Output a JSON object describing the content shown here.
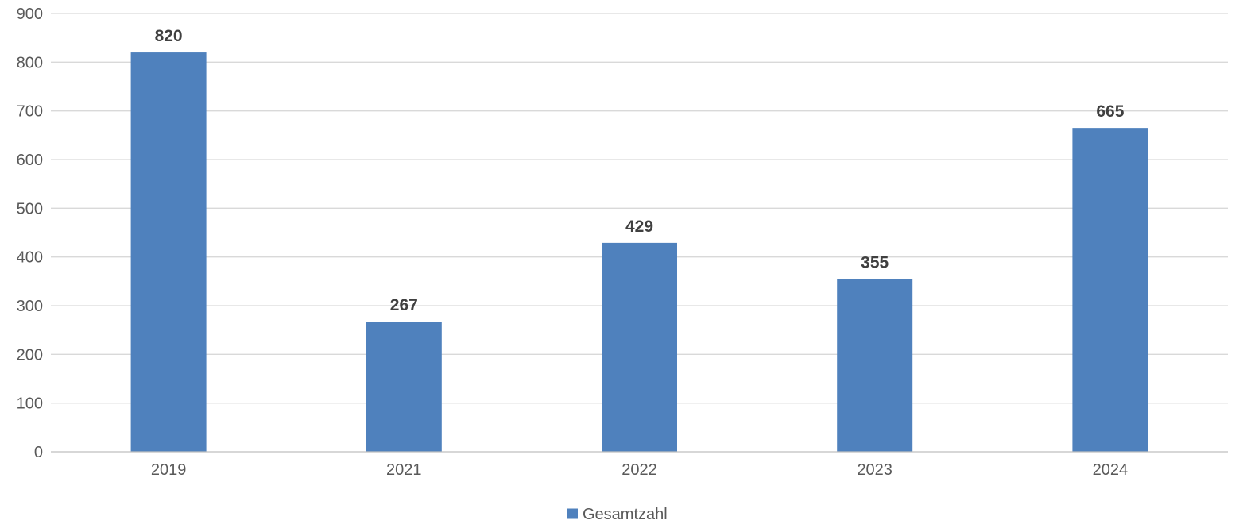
{
  "chart_data": {
    "type": "bar",
    "categories": [
      "2019",
      "2021",
      "2022",
      "2023",
      "2024"
    ],
    "series": [
      {
        "name": "Gesamtzahl",
        "values": [
          820,
          267,
          429,
          355,
          665
        ],
        "color": "#4f81bd"
      }
    ],
    "ylim": [
      0,
      900
    ],
    "yticks": [
      0,
      100,
      200,
      300,
      400,
      500,
      600,
      700,
      800,
      900
    ],
    "grid": true,
    "legend_position": "bottom",
    "data_labels": true
  }
}
